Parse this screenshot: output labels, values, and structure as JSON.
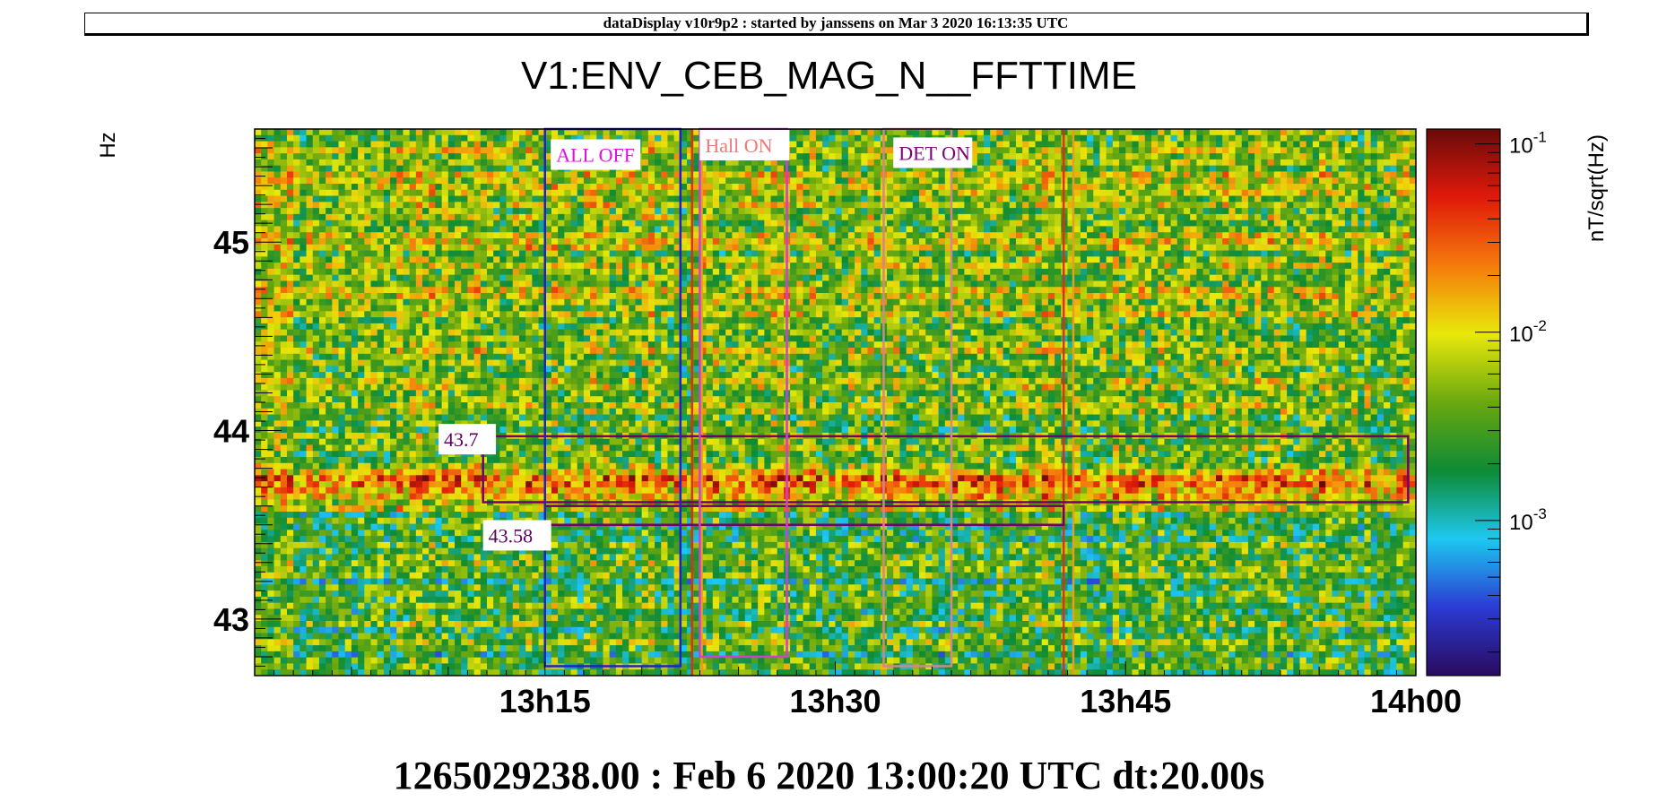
{
  "header": {
    "text": "dataDisplay v10r9p2 : started by janssens on Mar  3 2020 16:13:35 UTC"
  },
  "footer": {
    "text": "1265029238.00 : Feb  6 2020 13:00:20 UTC dt:20.00s"
  },
  "chart_data": {
    "type": "heatmap",
    "title": "V1:ENV_CEB_MAG_N__FFTTIME",
    "ylabel": "Hz",
    "xlabel": "",
    "x_range_minutes": [
      0,
      60
    ],
    "x_ticks": [
      {
        "label": "13h15",
        "minute": 15
      },
      {
        "label": "13h30",
        "minute": 30
      },
      {
        "label": "13h45",
        "minute": 45
      },
      {
        "label": "14h00",
        "minute": 60
      }
    ],
    "ylim": [
      42.7,
      45.6
    ],
    "y_ticks": [
      {
        "label": "43",
        "value": 43
      },
      {
        "label": "44",
        "value": 44
      },
      {
        "label": "45",
        "value": 45
      }
    ],
    "colorbar": {
      "label": "nT/sqrt(Hz)",
      "scale": "log",
      "range": [
        0.00015,
        0.12
      ],
      "ticks": [
        {
          "base": "10",
          "exp": "-1",
          "value": 0.1
        },
        {
          "base": "10",
          "exp": "-2",
          "value": 0.01
        },
        {
          "base": "10",
          "exp": "-3",
          "value": 0.001
        }
      ],
      "colors": [
        "#2a0a5e",
        "#2b3bd3",
        "#1ec8f0",
        "#0e8b35",
        "#6aa80f",
        "#e8e80a",
        "#f57b0c",
        "#e01a0a",
        "#6a0a0a"
      ]
    },
    "hot_line_hz": 43.7,
    "annotations": [
      {
        "text": "ALL OFF",
        "color": "#e010e0",
        "x_minutes": [
          15.0,
          22.0
        ],
        "y_hz": [
          42.75,
          45.6
        ],
        "border": "#2020d0",
        "label_minute": 15.3,
        "label_hz": 45.45
      },
      {
        "text": "Hall ON",
        "color": "#f07878",
        "x_minutes": [
          23.0,
          27.5
        ],
        "y_hz": [
          42.8,
          45.6
        ],
        "border": "#d040d0",
        "label_minute": 23.0,
        "label_hz": 45.5
      },
      {
        "text": "DET ON",
        "color": "#800080",
        "x_minutes": [
          32.5,
          36.0
        ],
        "y_hz": [
          42.75,
          45.6
        ],
        "border": "#d08888",
        "label_minute": 33.0,
        "label_hz": 45.46
      },
      {
        "text": "43.7",
        "color": "#600060",
        "label_minute": 9.5,
        "label_hz": 43.94
      },
      {
        "text": "43.58",
        "color": "#600060",
        "label_minute": 11.8,
        "label_hz": 43.43
      }
    ],
    "line_boxes": [
      {
        "x_minutes": [
          11.8,
          59.6
        ],
        "y_hz": [
          43.62,
          43.97
        ],
        "color": "#700070"
      },
      {
        "x_minutes": [
          15.0,
          41.8
        ],
        "y_hz": [
          43.5,
          43.6
        ],
        "color": "#700070"
      }
    ],
    "vertical_lines": [
      {
        "minute": 22.6,
        "color": "#e03010"
      },
      {
        "minute": 23.1,
        "color": "#e0a020"
      },
      {
        "minute": 41.8,
        "color": "#e03010"
      },
      {
        "minute": 42.3,
        "color": "#e0a020"
      }
    ]
  }
}
